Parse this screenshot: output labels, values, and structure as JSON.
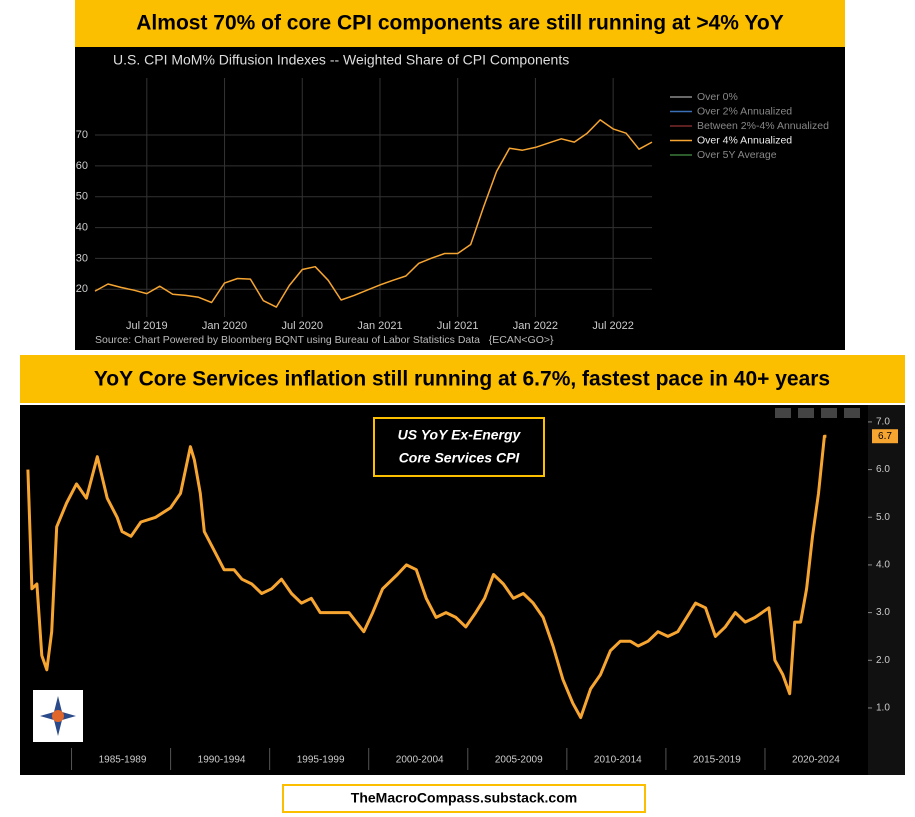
{
  "chart_data": [
    {
      "type": "line",
      "headline": "Almost 70% of core CPI components are still running at >4% YoY",
      "title": "U.S. CPI MoM% Diffusion Indexes -- Weighted Share of CPI Components",
      "source": "Source: Chart Powered by Bloomberg BQNT using Bureau of Labor Statistics Data   {ECAN<GO>}",
      "x": [
        "2019-03",
        "2019-04",
        "2019-05",
        "2019-06",
        "2019-07",
        "2019-08",
        "2019-09",
        "2019-10",
        "2019-11",
        "2019-12",
        "2020-01",
        "2020-02",
        "2020-03",
        "2020-04",
        "2020-05",
        "2020-06",
        "2020-07",
        "2020-08",
        "2020-09",
        "2020-10",
        "2020-11",
        "2020-12",
        "2021-01",
        "2021-02",
        "2021-03",
        "2021-04",
        "2021-05",
        "2021-06",
        "2021-07",
        "2021-08",
        "2021-09",
        "2021-10",
        "2021-11",
        "2021-12",
        "2022-01",
        "2022-02",
        "2022-03",
        "2022-04",
        "2022-05",
        "2022-06",
        "2022-07",
        "2022-08",
        "2022-09",
        "2022-10"
      ],
      "series": [
        {
          "color": "#f7a531",
          "values": [
            19.4,
            21.7,
            20.6,
            19.7,
            18.6,
            21,
            18.4,
            18,
            17.4,
            15.7,
            22,
            23.5,
            23.3,
            16.3,
            14.2,
            21.2,
            26.4,
            27.3,
            22.9,
            16.5,
            18,
            19.7,
            21.4,
            22.9,
            24.3,
            28.4,
            30.1,
            31.6,
            31.6,
            34.5,
            46.7,
            58.2,
            65.7,
            65.1,
            66,
            67.4,
            68.8,
            67.7,
            70.6,
            74.9,
            72,
            70.6,
            65.4,
            67.7
          ]
        }
      ],
      "legend": [
        {
          "name": "Over 0%",
          "color": "#8a8a8a"
        },
        {
          "name": "Over 2% Annualized",
          "color": "#3b6fb6"
        },
        {
          "name": "Between 2%-4% Annualized",
          "color": "#7a2a2a"
        },
        {
          "name": "Over 4% Annualized",
          "color": "#f7a531"
        },
        {
          "name": "Over 5Y Average",
          "color": "#3a7a3a"
        }
      ],
      "xlim": [
        "2019-03",
        "2022-10"
      ],
      "xticks": [
        {
          "value": "2019-07",
          "label": "Jul 2019"
        },
        {
          "value": "2020-01",
          "label": "Jan 2020"
        },
        {
          "value": "2020-07",
          "label": "Jul 2020"
        },
        {
          "value": "2021-01",
          "label": "Jan 2021"
        },
        {
          "value": "2021-07",
          "label": "Jul 2021"
        },
        {
          "value": "2022-01",
          "label": "Jan 2022"
        },
        {
          "value": "2022-07",
          "label": "Jul 2022"
        }
      ],
      "ylim": [
        11,
        88.5
      ],
      "yticks": [
        20,
        30,
        40,
        50,
        60,
        70
      ],
      "grid": true
    },
    {
      "type": "line",
      "headline": "YoY Core Services inflation still running at 6.7%, fastest pace in 40+ years",
      "title_lines": [
        "US YoY Ex-Energy",
        "Core Services CPI"
      ],
      "x": [
        1982.8,
        1983.0,
        1983.25,
        1983.5,
        1983.75,
        1984.0,
        1984.25,
        1984.75,
        1985.25,
        1985.75,
        1986.3,
        1986.8,
        1987.3,
        1987.55,
        1988.0,
        1988.5,
        1989.25,
        1990.0,
        1990.5,
        1991.0,
        1991.2,
        1991.5,
        1991.7,
        1992.2,
        1992.7,
        1993.2,
        1993.6,
        1994.1,
        1994.6,
        1995.1,
        1995.6,
        1996.1,
        1996.6,
        1997.1,
        1997.55,
        1998.3,
        1999.0,
        1999.75,
        2000.2,
        2000.7,
        2001.45,
        2001.9,
        2002.4,
        2002.9,
        2003.4,
        2003.9,
        2004.4,
        2004.9,
        2005.4,
        2005.85,
        2006.3,
        2006.8,
        2007.3,
        2007.8,
        2008.3,
        2008.8,
        2009.3,
        2009.8,
        2010.3,
        2010.7,
        2011.2,
        2011.7,
        2012.2,
        2012.7,
        2013.2,
        2013.6,
        2014.1,
        2014.6,
        2015.1,
        2015.6,
        2016.05,
        2016.5,
        2017.0,
        2017.5,
        2018.0,
        2018.5,
        2019.0,
        2019.5,
        2020.2,
        2020.5,
        2020.9,
        2021.25,
        2021.5,
        2021.8,
        2022.1,
        2022.4,
        2022.7,
        2023.0,
        2023.1
      ],
      "series": [
        {
          "color": "#f7a531",
          "values": [
            6.0,
            3.5,
            3.6,
            2.1,
            1.8,
            2.6,
            4.8,
            5.3,
            5.7,
            5.4,
            6.27,
            5.4,
            5.0,
            4.7,
            4.6,
            4.9,
            5.0,
            5.2,
            5.5,
            6.48,
            6.2,
            5.5,
            4.7,
            4.3,
            3.9,
            3.9,
            3.7,
            3.6,
            3.4,
            3.5,
            3.7,
            3.4,
            3.2,
            3.3,
            3.0,
            3.0,
            3.0,
            2.6,
            3.0,
            3.5,
            3.8,
            4.0,
            3.9,
            3.3,
            2.9,
            3.0,
            2.9,
            2.7,
            3.0,
            3.3,
            3.8,
            3.6,
            3.3,
            3.4,
            3.2,
            2.9,
            2.3,
            1.6,
            1.1,
            0.8,
            1.4,
            1.7,
            2.2,
            2.4,
            2.4,
            2.3,
            2.4,
            2.6,
            2.5,
            2.6,
            2.9,
            3.2,
            3.1,
            2.5,
            2.7,
            3.0,
            2.8,
            2.9,
            3.1,
            2.0,
            1.7,
            1.3,
            2.8,
            2.8,
            3.5,
            4.6,
            5.5,
            6.7,
            6.7
          ]
        }
      ],
      "last_label": {
        "value": 6.7,
        "label": "6.7"
      },
      "xlim": [
        1982.5,
        2025.2
      ],
      "xticks": [
        {
          "value": 1985,
          "label": "1985-1989"
        },
        {
          "value": 1990,
          "label": "1990-1994"
        },
        {
          "value": 1995,
          "label": "1995-1999"
        },
        {
          "value": 2000,
          "label": "2000-2004"
        },
        {
          "value": 2005,
          "label": "2005-2009"
        },
        {
          "value": 2010,
          "label": "2010-2014"
        },
        {
          "value": 2015,
          "label": "2015-2019"
        },
        {
          "value": 2020,
          "label": "2020-2024"
        }
      ],
      "ylim": [
        0.16,
        7.25
      ],
      "yticks": [
        {
          "value": 1,
          "label": "1.0"
        },
        {
          "value": 2,
          "label": "2.0"
        },
        {
          "value": 3,
          "label": "3.0"
        },
        {
          "value": 4,
          "label": "4.0"
        },
        {
          "value": 5,
          "label": "5.0"
        },
        {
          "value": 6,
          "label": "6.0"
        },
        {
          "value": 7,
          "label": "7.0"
        }
      ]
    }
  ],
  "footer": "TheMacroCompass.substack.com"
}
